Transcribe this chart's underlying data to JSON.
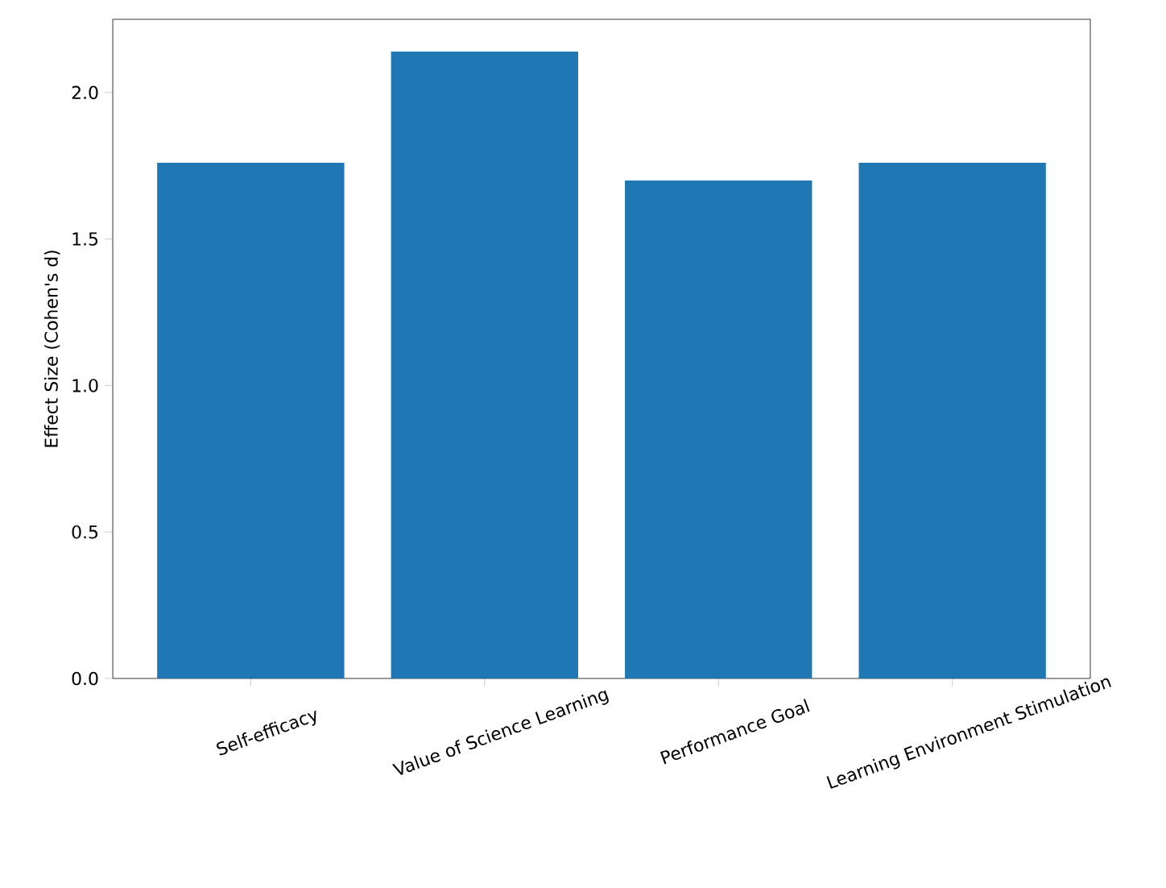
{
  "chart_data": {
    "type": "bar",
    "ylabel": "Effect Size (Cohen's d)",
    "categories": [
      "Self-efficacy",
      "Value of Science Learning",
      "Performance Goal",
      "Learning Environment Stimulation"
    ],
    "values": [
      1.76,
      2.14,
      1.7,
      1.76
    ],
    "color": "#1f77b4",
    "ylim": [
      0,
      2.25
    ],
    "yticks": [
      {
        "value": 0,
        "label": "0.0"
      },
      0.5,
      {
        "value": 1,
        "label": "1.0"
      },
      1.5,
      {
        "value": 2,
        "label": "2.0"
      }
    ],
    "grid": false
  }
}
